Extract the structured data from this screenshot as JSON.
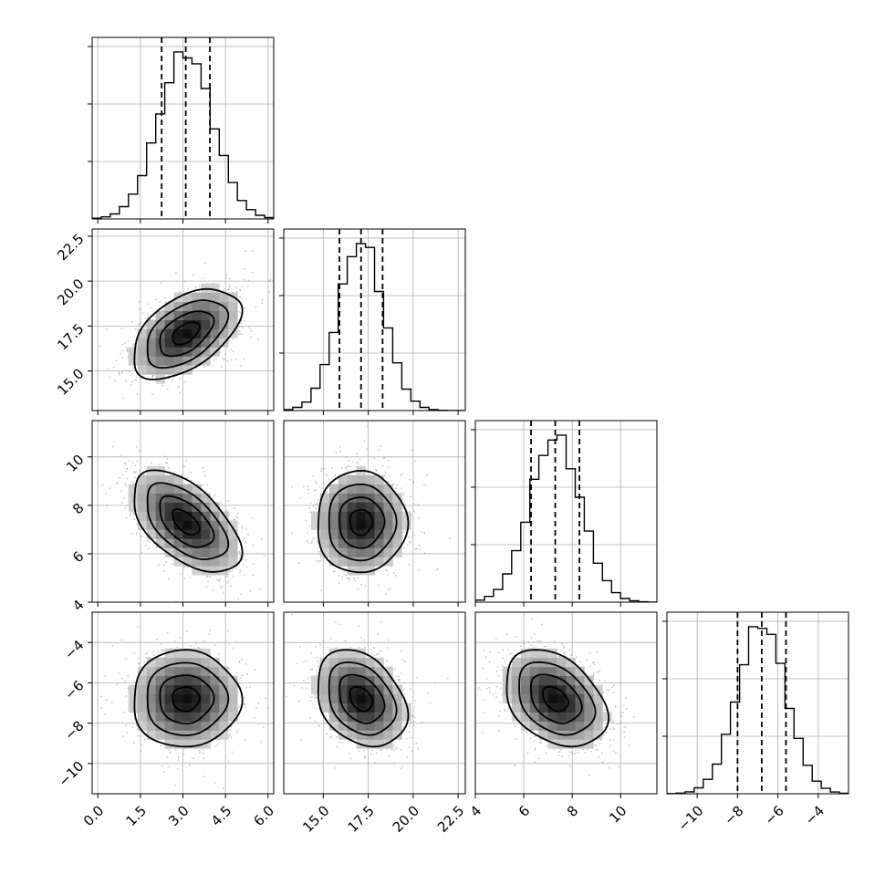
{
  "chart_data": {
    "type": "corner",
    "title": "",
    "grid": true,
    "parameters": [
      {
        "index": 0,
        "range": [
          -0.2,
          6.2
        ],
        "mean": 3.1,
        "sd": 0.95,
        "quantiles": [
          2.25,
          3.1,
          3.95
        ],
        "ticks": [
          0.0,
          1.5,
          3.0,
          4.5,
          6.0
        ],
        "tick_labels": [
          "0.0",
          "1.5",
          "3.0",
          "4.5",
          "6.0"
        ]
      },
      {
        "index": 1,
        "range": [
          12.8,
          22.9
        ],
        "mean": 17.1,
        "sd": 1.25,
        "quantiles": [
          15.9,
          17.1,
          18.3
        ],
        "ticks": [
          15.0,
          17.5,
          20.0,
          22.5
        ],
        "tick_labels": [
          "15.0",
          "17.5",
          "20.0",
          "22.5"
        ]
      },
      {
        "index": 2,
        "range": [
          4.0,
          11.5
        ],
        "mean": 7.3,
        "sd": 1.05,
        "quantiles": [
          6.3,
          7.3,
          8.3
        ],
        "ticks": [
          4,
          6,
          8,
          10
        ],
        "tick_labels": [
          "4",
          "6",
          "8",
          "10"
        ]
      },
      {
        "index": 3,
        "range": [
          -11.5,
          -2.5
        ],
        "mean": -6.8,
        "sd": 1.2,
        "quantiles": [
          -8.0,
          -6.8,
          -5.6
        ],
        "ticks": [
          -10,
          -8,
          -6,
          -4
        ],
        "tick_labels": [
          "−10",
          "−8",
          "−6",
          "−4"
        ]
      }
    ],
    "correlations": [
      {
        "pair": [
          0,
          1
        ],
        "rho": 0.5
      },
      {
        "pair": [
          0,
          2
        ],
        "rho": -0.55
      },
      {
        "pair": [
          1,
          2
        ],
        "rho": 0.0
      },
      {
        "pair": [
          0,
          3
        ],
        "rho": 0.0
      },
      {
        "pair": [
          1,
          3
        ],
        "rho": -0.3
      },
      {
        "pair": [
          2,
          3
        ],
        "rho": -0.35
      }
    ],
    "contour_levels_sigma": [
      0.5,
      1.0,
      1.5,
      2.0
    ],
    "histogram_bins": 20
  }
}
